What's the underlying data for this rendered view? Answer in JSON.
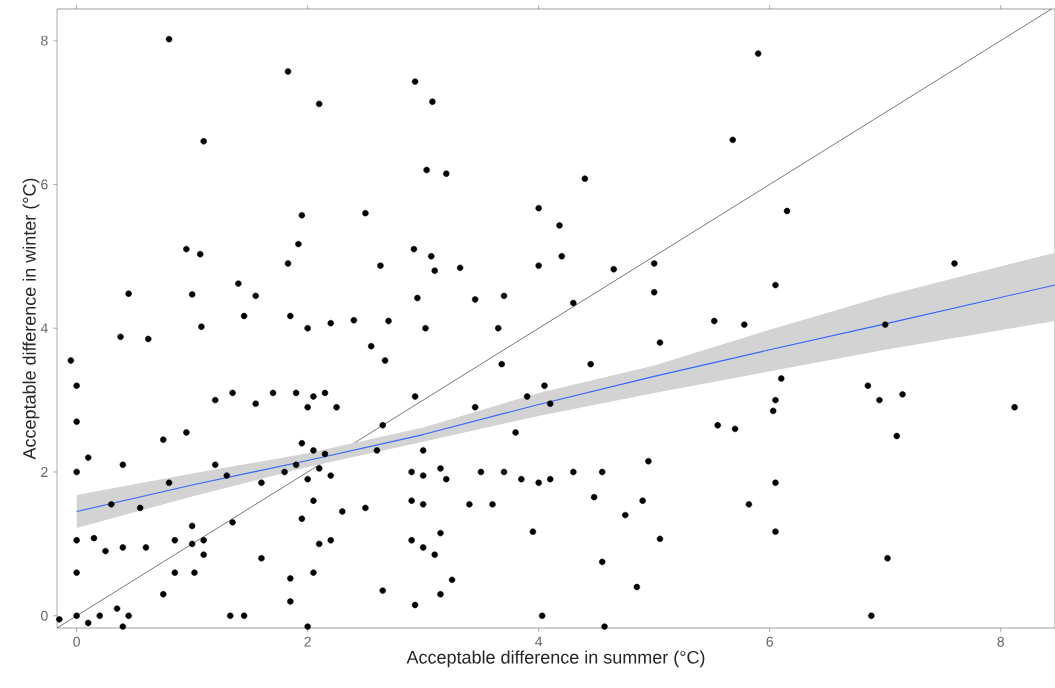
{
  "chart_data": {
    "type": "scatter",
    "xlabel": "Acceptable difference in summer (°C)",
    "ylabel": "Acceptable difference in winter (°C)",
    "xlim": [
      -0.17,
      8.47
    ],
    "ylim": [
      -0.17,
      8.44
    ],
    "xticks": [
      0,
      2,
      4,
      6,
      8
    ],
    "yticks": [
      0,
      2,
      4,
      6,
      8
    ],
    "grid": false,
    "marker": "circle",
    "series": [
      {
        "type": "scatter",
        "color": "#000000",
        "x": [
          0.8,
          1.83,
          2.1,
          2.93,
          3.08,
          1.1,
          3.03,
          3.2,
          2.5,
          1.95,
          1.92,
          0.95,
          1.07,
          2.92,
          3.07,
          4.4,
          5.68,
          5.9,
          4.0,
          4.18,
          4.2,
          4.0,
          6.15,
          6.05,
          7.6,
          4.65,
          5.0,
          0.45,
          1.0,
          1.4,
          1.55,
          1.83,
          2.63,
          3.1,
          2.95,
          3.32,
          3.45,
          3.7,
          3.02,
          1.08,
          0.38,
          0.62,
          1.45,
          1.85,
          2.0,
          2.2,
          2.4,
          2.7,
          3.65,
          4.3,
          4.45,
          5.52,
          5.78,
          6.85,
          6.95,
          7.15,
          7.0,
          8.12,
          6.05,
          6.1,
          6.03,
          5.55,
          5.7,
          7.1,
          6.05,
          5.82,
          6.05,
          7.02,
          4.57,
          6.88,
          4.03,
          5.05,
          4.55,
          1.8,
          1.9,
          2.0,
          2.1,
          2.2,
          2.05,
          1.95,
          2.15,
          1.9,
          2.05,
          2.15,
          2.0,
          2.25,
          1.7,
          1.55,
          1.35,
          1.2,
          0.95,
          0.75,
          0.4,
          0.0,
          0.1,
          0.0,
          -0.05,
          0.0,
          0.15,
          0.0,
          0.25,
          0.4,
          0.6,
          0.85,
          1.0,
          1.1,
          1.1,
          1.02,
          0.85,
          0.75,
          0.45,
          0.35,
          0.0,
          0.1,
          -0.15,
          0.2,
          0.4,
          1.33,
          1.45,
          1.85,
          2.0,
          1.85,
          2.05,
          2.1,
          2.2,
          1.95,
          2.05,
          2.3,
          2.5,
          2.65,
          2.6,
          2.55,
          2.67,
          2.93,
          3.0,
          2.9,
          3.0,
          3.15,
          3.2,
          2.9,
          3.0,
          2.9,
          3.0,
          3.1,
          3.15,
          2.93,
          3.15,
          2.65,
          3.25,
          3.4,
          3.6,
          3.5,
          3.7,
          3.8,
          3.45,
          3.68,
          3.9,
          4.05,
          4.1,
          3.85,
          4.0,
          4.1,
          3.95,
          4.3,
          4.55,
          4.48,
          4.75,
          4.9,
          4.95,
          5.05,
          5.0,
          4.85,
          1.3,
          1.6,
          1.35,
          1.6,
          0.55,
          0.3,
          0.8,
          1.2,
          1.0,
          0.0
        ],
        "values": [
          8.02,
          7.57,
          7.12,
          7.43,
          7.15,
          6.6,
          6.2,
          6.15,
          5.6,
          5.57,
          5.17,
          5.1,
          5.03,
          5.1,
          5.0,
          6.08,
          6.62,
          7.82,
          5.67,
          5.43,
          5.0,
          4.87,
          5.63,
          4.6,
          4.9,
          4.82,
          4.9,
          4.48,
          4.47,
          4.62,
          4.45,
          4.9,
          4.87,
          4.8,
          4.42,
          4.84,
          4.4,
          4.45,
          4.0,
          4.02,
          3.88,
          3.85,
          4.17,
          4.17,
          4.0,
          4.07,
          4.11,
          4.1,
          4.0,
          4.35,
          3.5,
          4.1,
          4.05,
          3.2,
          3.0,
          3.08,
          4.05,
          2.9,
          3.0,
          3.3,
          2.85,
          2.65,
          2.6,
          2.5,
          1.85,
          1.55,
          1.17,
          0.8,
          -0.15,
          0.0,
          0.0,
          1.07,
          0.75,
          2.0,
          2.1,
          1.9,
          2.05,
          1.95,
          2.3,
          2.4,
          2.25,
          3.1,
          3.05,
          3.1,
          2.9,
          2.9,
          3.1,
          2.95,
          3.1,
          3.0,
          2.55,
          2.45,
          2.1,
          2.0,
          2.2,
          3.2,
          3.55,
          2.7,
          1.08,
          1.05,
          0.9,
          0.95,
          0.95,
          1.05,
          1.0,
          1.05,
          0.85,
          0.6,
          0.6,
          0.3,
          0.0,
          0.1,
          0.0,
          -0.1,
          -0.05,
          0.0,
          -0.15,
          0.0,
          0.0,
          0.2,
          -0.15,
          0.52,
          0.6,
          1.0,
          1.05,
          1.35,
          1.6,
          1.45,
          1.5,
          2.65,
          2.3,
          3.75,
          3.55,
          3.05,
          2.3,
          2.0,
          1.95,
          2.05,
          1.9,
          1.6,
          1.55,
          1.05,
          0.95,
          0.85,
          1.15,
          0.15,
          0.3,
          0.35,
          0.5,
          1.55,
          1.55,
          2.0,
          2.0,
          2.55,
          2.9,
          3.5,
          3.05,
          3.2,
          2.95,
          1.9,
          1.85,
          1.9,
          1.17,
          2.0,
          2.0,
          1.65,
          1.4,
          1.6,
          2.15,
          3.8,
          4.5,
          0.4,
          1.95,
          1.85,
          1.3,
          0.8,
          1.5,
          1.55,
          1.85,
          2.1,
          1.25,
          0.6
        ]
      },
      {
        "type": "line",
        "marker": "none",
        "color": "#000000",
        "x": [
          -0.17,
          8.44
        ],
        "values": [
          -0.17,
          8.44
        ]
      },
      {
        "type": "line",
        "marker": "none",
        "color": "#3366ff",
        "x": [
          0,
          1,
          2,
          3,
          4,
          5,
          6,
          7,
          8.47
        ],
        "values": [
          1.45,
          1.82,
          2.16,
          2.52,
          2.94,
          3.33,
          3.7,
          4.06,
          4.6
        ],
        "lower": [
          1.22,
          1.66,
          2.07,
          2.42,
          2.78,
          3.1,
          3.4,
          3.7,
          4.1
        ],
        "upper": [
          1.68,
          1.98,
          2.26,
          2.62,
          3.1,
          3.48,
          3.98,
          4.45,
          5.05
        ]
      }
    ]
  }
}
